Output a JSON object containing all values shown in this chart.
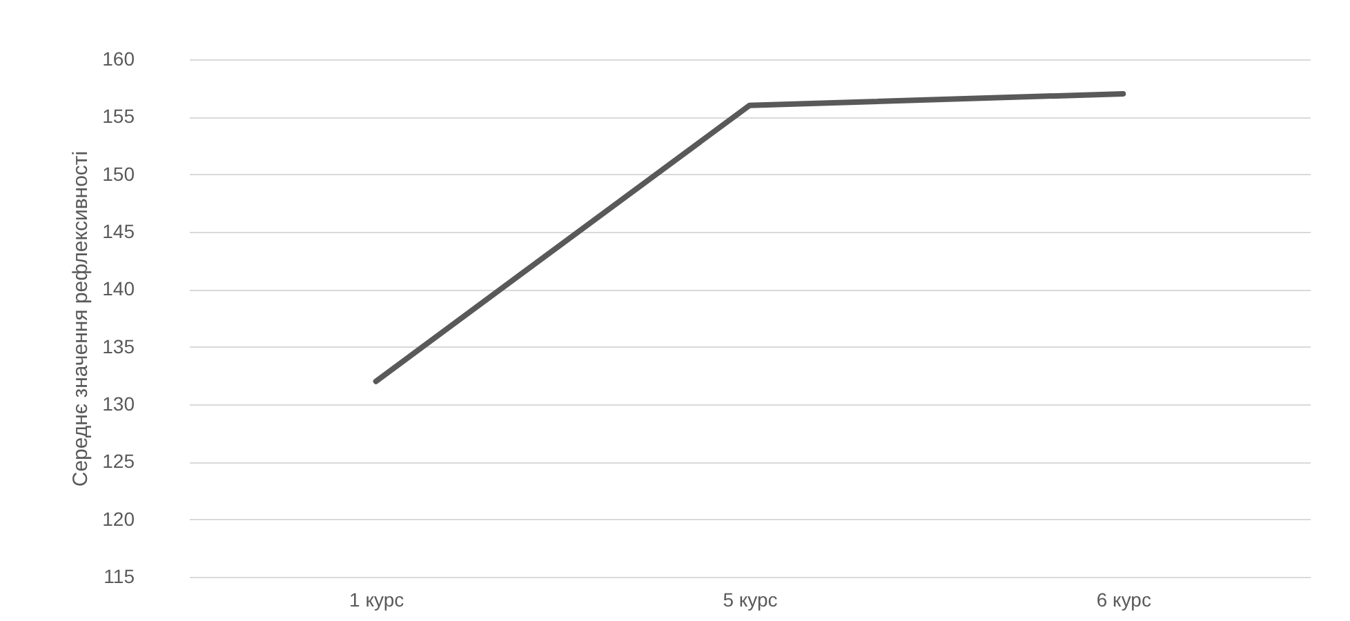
{
  "chart_data": {
    "type": "line",
    "ylabel": "Середнє значення рефлексивності",
    "categories": [
      "1 курс",
      "5 курс",
      "6 курс"
    ],
    "series": [
      {
        "color": "#595959",
        "values": [
          132,
          156,
          157
        ]
      }
    ],
    "ylim": [
      115,
      160
    ],
    "yticks": [
      115,
      120,
      125,
      130,
      135,
      140,
      145,
      150,
      155,
      160
    ],
    "grid": "y",
    "legend": false,
    "marker": "none",
    "line_style": "solid"
  }
}
